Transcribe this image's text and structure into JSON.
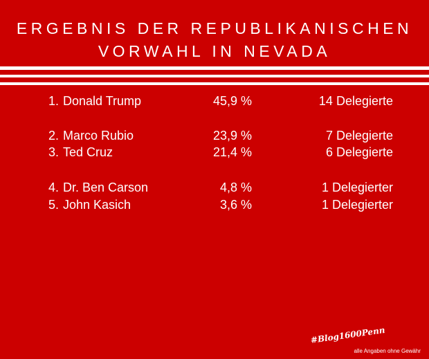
{
  "title": {
    "line1": "ERGEBNIS DER REPUBLIKANISCHEN",
    "line2": "VORWAHL IN NEVADA"
  },
  "results": [
    {
      "rank": "1.",
      "name": "Donald Trump",
      "percent": "45,9 %",
      "delegates": "14 Delegierte"
    },
    {
      "rank": "2.",
      "name": "Marco Rubio",
      "percent": "23,9 %",
      "delegates": "7 Delegierte"
    },
    {
      "rank": "3.",
      "name": "Ted Cruz",
      "percent": "21,4 %",
      "delegates": "6 Delegierte"
    },
    {
      "rank": "4.",
      "name": "Dr. Ben Carson",
      "percent": "4,8 %",
      "delegates": "1 Delegierter"
    },
    {
      "rank": "5.",
      "name": "John Kasich",
      "percent": "3,6 %",
      "delegates": "1 Delegierter"
    }
  ],
  "hashtag": "#Blog1600Penn",
  "disclaimer": "alle Angaben ohne Gewähr",
  "colors": {
    "background": "#cc0000",
    "text": "#ffffff"
  }
}
